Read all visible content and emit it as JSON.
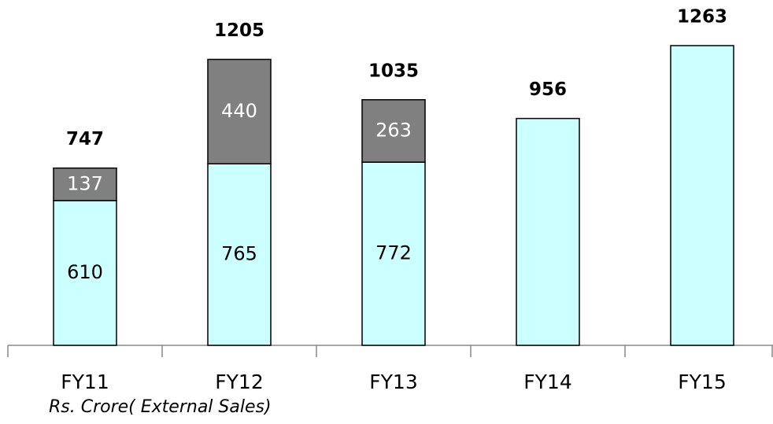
{
  "chart_data": {
    "type": "stacked_bar",
    "categories": [
      "FY11",
      "FY12",
      "FY13",
      "FY14",
      "FY15"
    ],
    "series": [
      {
        "color": "#ccffff",
        "values": [
          610,
          765,
          772,
          956,
          1263
        ],
        "value_labels": [
          "610",
          "765",
          "772",
          null,
          null
        ],
        "label_color": "#000000"
      },
      {
        "color": "#808080",
        "values": [
          137,
          440,
          263,
          null,
          null
        ],
        "value_labels": [
          "137",
          "440",
          "263",
          null,
          null
        ],
        "label_color": "#ffffff"
      }
    ],
    "totals": [
      747,
      1205,
      1035,
      956,
      1263
    ],
    "note": "Rs. Crore( External Sales)"
  }
}
